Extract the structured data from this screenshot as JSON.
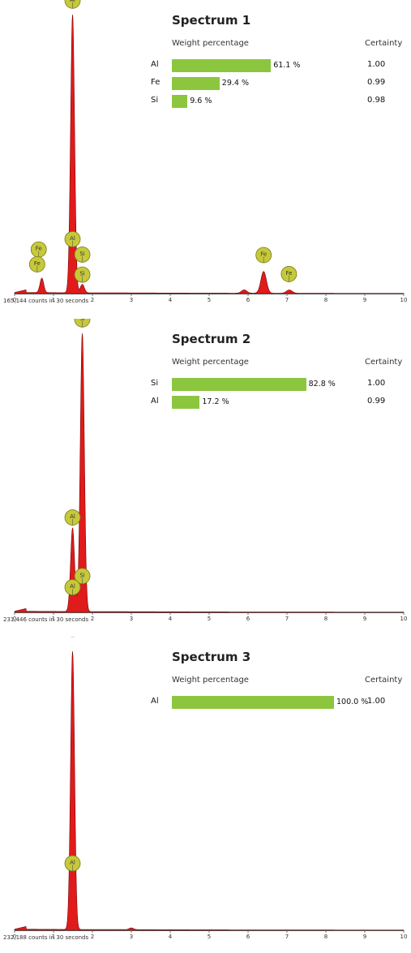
{
  "chart_data": [
    {
      "type": "bar",
      "title": "Spectrum 1",
      "weight_header": "Weight percentage",
      "certainty_header": "Certainty",
      "elements": [
        {
          "symbol": "Al",
          "weight": 61.1,
          "weight_label": "61.1 %",
          "certainty": "1.00"
        },
        {
          "symbol": "Fe",
          "weight": 29.4,
          "weight_label": "29.4 %",
          "certainty": "0.99"
        },
        {
          "symbol": "Si",
          "weight": 9.6,
          "weight_label": "9.6 %",
          "certainty": "0.98"
        }
      ],
      "counts_label": "165,144 counts in 30 seconds",
      "x_ticks": [
        "0",
        "1",
        "2",
        "3",
        "4",
        "5",
        "6",
        "7",
        "8",
        "9",
        "10"
      ],
      "xlim": [
        0,
        10
      ],
      "spectrum": {
        "type": "line",
        "peaks": [
          {
            "keV": 0.7,
            "height": 0.052
          },
          {
            "keV": 1.49,
            "height": 1.0
          },
          {
            "keV": 1.74,
            "height": 0.03
          },
          {
            "keV": 5.9,
            "height": 0.012
          },
          {
            "keV": 6.4,
            "height": 0.078
          },
          {
            "keV": 7.06,
            "height": 0.012
          }
        ],
        "markers": [
          {
            "label": "Fe",
            "keV": 0.62,
            "level": 0.158
          },
          {
            "label": "Fe",
            "keV": 0.58,
            "level": 0.105
          },
          {
            "label": "Al",
            "keV": 1.49,
            "level": 0.195
          },
          {
            "label": "Si",
            "keV": 1.74,
            "level": 0.14
          },
          {
            "label": "Si",
            "keV": 1.74,
            "level": 0.068
          },
          {
            "label": "Al",
            "keV": 1.49,
            "level": 1.05
          },
          {
            "label": "Fe",
            "keV": 6.4,
            "level": 0.138
          },
          {
            "label": "Fe",
            "keV": 7.05,
            "level": 0.07
          }
        ]
      }
    },
    {
      "type": "bar",
      "title": "Spectrum 2",
      "weight_header": "Weight percentage",
      "certainty_header": "Certainty",
      "elements": [
        {
          "symbol": "Si",
          "weight": 82.8,
          "weight_label": "82.8 %",
          "certainty": "1.00"
        },
        {
          "symbol": "Al",
          "weight": 17.2,
          "weight_label": "17.2 %",
          "certainty": "0.99"
        }
      ],
      "counts_label": "231,446 counts in 30 seconds",
      "x_ticks": [
        "0",
        "1",
        "2",
        "3",
        "4",
        "5",
        "6",
        "7",
        "8",
        "9",
        "10"
      ],
      "xlim": [
        0,
        10
      ],
      "spectrum": {
        "type": "line",
        "peaks": [
          {
            "keV": 1.49,
            "height": 0.3
          },
          {
            "keV": 1.74,
            "height": 1.0
          }
        ],
        "markers": [
          {
            "label": "Si",
            "keV": 1.74,
            "level": 1.05
          },
          {
            "label": "Al",
            "keV": 1.49,
            "level": 0.34
          },
          {
            "label": "Si",
            "keV": 1.74,
            "level": 0.13
          },
          {
            "label": "Al",
            "keV": 1.49,
            "level": 0.09
          }
        ]
      }
    },
    {
      "type": "bar",
      "title": "Spectrum 3",
      "weight_header": "Weight percentage",
      "certainty_header": "Certainty",
      "elements": [
        {
          "symbol": "Al",
          "weight": 100.0,
          "weight_label": "100.0 %",
          "certainty": "1.00"
        }
      ],
      "counts_label": "232,188 counts in 30 seconds",
      "x_ticks": [
        "0",
        "1",
        "2",
        "3",
        "4",
        "5",
        "6",
        "7",
        "8",
        "9",
        "10"
      ],
      "xlim": [
        0,
        10
      ],
      "spectrum": {
        "type": "line",
        "peaks": [
          {
            "keV": 1.49,
            "height": 1.0
          },
          {
            "keV": 3.0,
            "height": 0.006
          }
        ],
        "markers": [
          {
            "label": "Al",
            "keV": 1.49,
            "level": 1.08
          },
          {
            "label": "Al",
            "keV": 1.49,
            "level": 0.24
          }
        ]
      }
    }
  ],
  "colors": {
    "bar": "#8cc63f",
    "spectrum_fill": "#e01b1b",
    "spectrum_line": "#7a0000",
    "marker_fill": "#c6c93a",
    "marker_stroke": "#7a7a12"
  }
}
